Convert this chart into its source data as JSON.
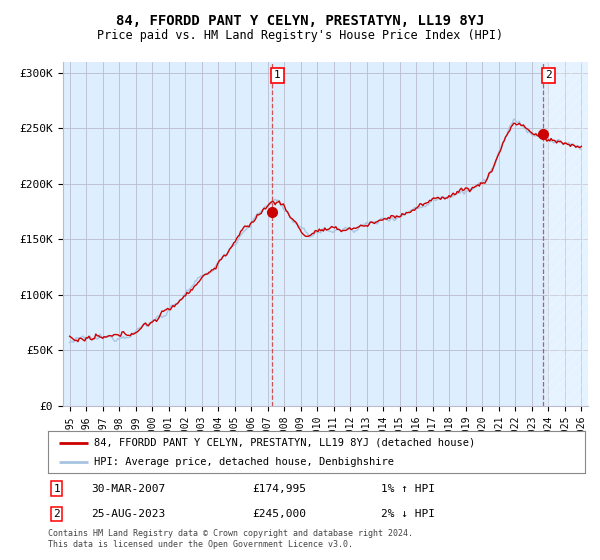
{
  "title": "84, FFORDD PANT Y CELYN, PRESTATYN, LL19 8YJ",
  "subtitle": "Price paid vs. HM Land Registry's House Price Index (HPI)",
  "ylabel_ticks": [
    "£0",
    "£50K",
    "£100K",
    "£150K",
    "£200K",
    "£250K",
    "£300K"
  ],
  "ytick_values": [
    0,
    50000,
    100000,
    150000,
    200000,
    250000,
    300000
  ],
  "ylim": [
    0,
    310000
  ],
  "xlim_start": 1994.6,
  "xlim_end": 2026.4,
  "hpi_color": "#a8c4e0",
  "price_color": "#cc0000",
  "plot_bg_color": "#ddeeff",
  "marker1_x": 2007.23,
  "marker1_y": 174995,
  "marker1_label": "1",
  "marker2_x": 2023.65,
  "marker2_y": 245000,
  "marker2_label": "2",
  "vline1_x": 2007.23,
  "vline2_x": 2023.65,
  "legend_line1": "84, FFORDD PANT Y CELYN, PRESTATYN, LL19 8YJ (detached house)",
  "legend_line2": "HPI: Average price, detached house, Denbighshire",
  "annotation1_date": "30-MAR-2007",
  "annotation1_price": "£174,995",
  "annotation1_hpi": "1% ↑ HPI",
  "annotation2_date": "25-AUG-2023",
  "annotation2_price": "£245,000",
  "annotation2_hpi": "2% ↓ HPI",
  "footnote": "Contains HM Land Registry data © Crown copyright and database right 2024.\nThis data is licensed under the Open Government Licence v3.0.",
  "background_color": "#ffffff",
  "grid_color": "#bbbbcc",
  "xtick_years": [
    1995,
    1996,
    1997,
    1998,
    1999,
    2000,
    2001,
    2002,
    2003,
    2004,
    2005,
    2006,
    2007,
    2008,
    2009,
    2010,
    2011,
    2012,
    2013,
    2014,
    2015,
    2016,
    2017,
    2018,
    2019,
    2020,
    2021,
    2022,
    2023,
    2024,
    2025,
    2026
  ]
}
